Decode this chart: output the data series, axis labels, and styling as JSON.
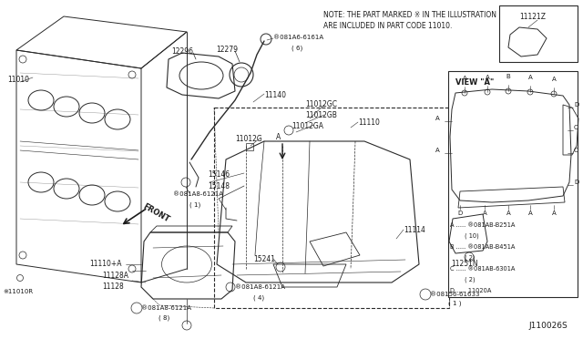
{
  "bg_color": "#f0f0f0",
  "fig_width": 6.4,
  "fig_height": 3.72,
  "dpi": 100,
  "note_text1": "NOTE: THE PART MARKED ※ IN THE ILLUSTRATION",
  "note_text2": "ARE INCLUDED IN PART CODE 11010.",
  "diagram_id": "J110026S",
  "line_color": "#2a2a2a",
  "text_color": "#1a1a1a"
}
